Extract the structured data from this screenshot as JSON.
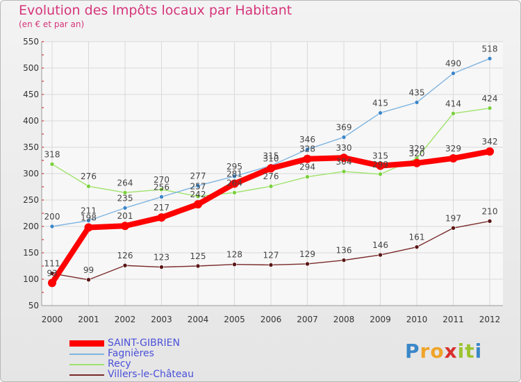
{
  "header": {
    "title": "Evolution des Impôts locaux par Habitant",
    "subtitle": "(en € et par an)"
  },
  "logo": {
    "text": "Proxiti",
    "letters": [
      "P",
      "r",
      "o",
      "x",
      "i",
      "t",
      "i"
    ],
    "colors": [
      "#3a87c8",
      "#f0a42a",
      "#f0a42a",
      "#d8302c",
      "#9cc431",
      "#9cc431",
      "#3a87c8"
    ]
  },
  "colors": {
    "grid": "#d9d9d9",
    "axis_text": "#333333",
    "label_text": "#444444",
    "tick_red": "#cc0000"
  },
  "chart_data": {
    "type": "line",
    "title": "Evolution des Impôts locaux par Habitant",
    "subtitle": "(en € et par an)",
    "xlabel": "",
    "ylabel": "",
    "ylim": [
      50,
      550
    ],
    "y_ticks": [
      50,
      100,
      150,
      200,
      250,
      300,
      350,
      400,
      450,
      500,
      550
    ],
    "x": [
      "2000",
      "2001",
      "2002",
      "2003",
      "2004",
      "2005",
      "2006",
      "2007",
      "2008",
      "2009",
      "2010",
      "2011",
      "2012"
    ],
    "grid": true,
    "legend_position": "bottom-left",
    "series": [
      {
        "name": "Villers-le-Château",
        "color": "#7a2a2a",
        "marker": "#5a1515",
        "values": [
          111,
          99,
          126,
          123,
          125,
          128,
          127,
          129,
          136,
          146,
          161,
          197,
          210
        ]
      },
      {
        "name": "Recy",
        "color": "#9ee36a",
        "marker": "#7bd03e",
        "values": [
          318,
          276,
          264,
          270,
          257,
          264,
          276,
          294,
          304,
          299,
          329,
          414,
          424
        ]
      },
      {
        "name": "Fagnières",
        "color": "#7fb4e0",
        "marker": "#3c86c8",
        "values": [
          200,
          211,
          235,
          256,
          277,
          295,
          315,
          346,
          369,
          415,
          435,
          490,
          518
        ]
      },
      {
        "name": "SAINT-GIBRIEN",
        "color": "#ff0000",
        "marker": "#ff0000",
        "values": [
          93,
          198,
          201,
          217,
          242,
          281,
          310,
          328,
          330,
          315,
          320,
          329,
          342
        ]
      }
    ],
    "legend": [
      "SAINT-GIBRIEN",
      "Fagnières",
      "Recy",
      "Villers-le-Château"
    ]
  }
}
